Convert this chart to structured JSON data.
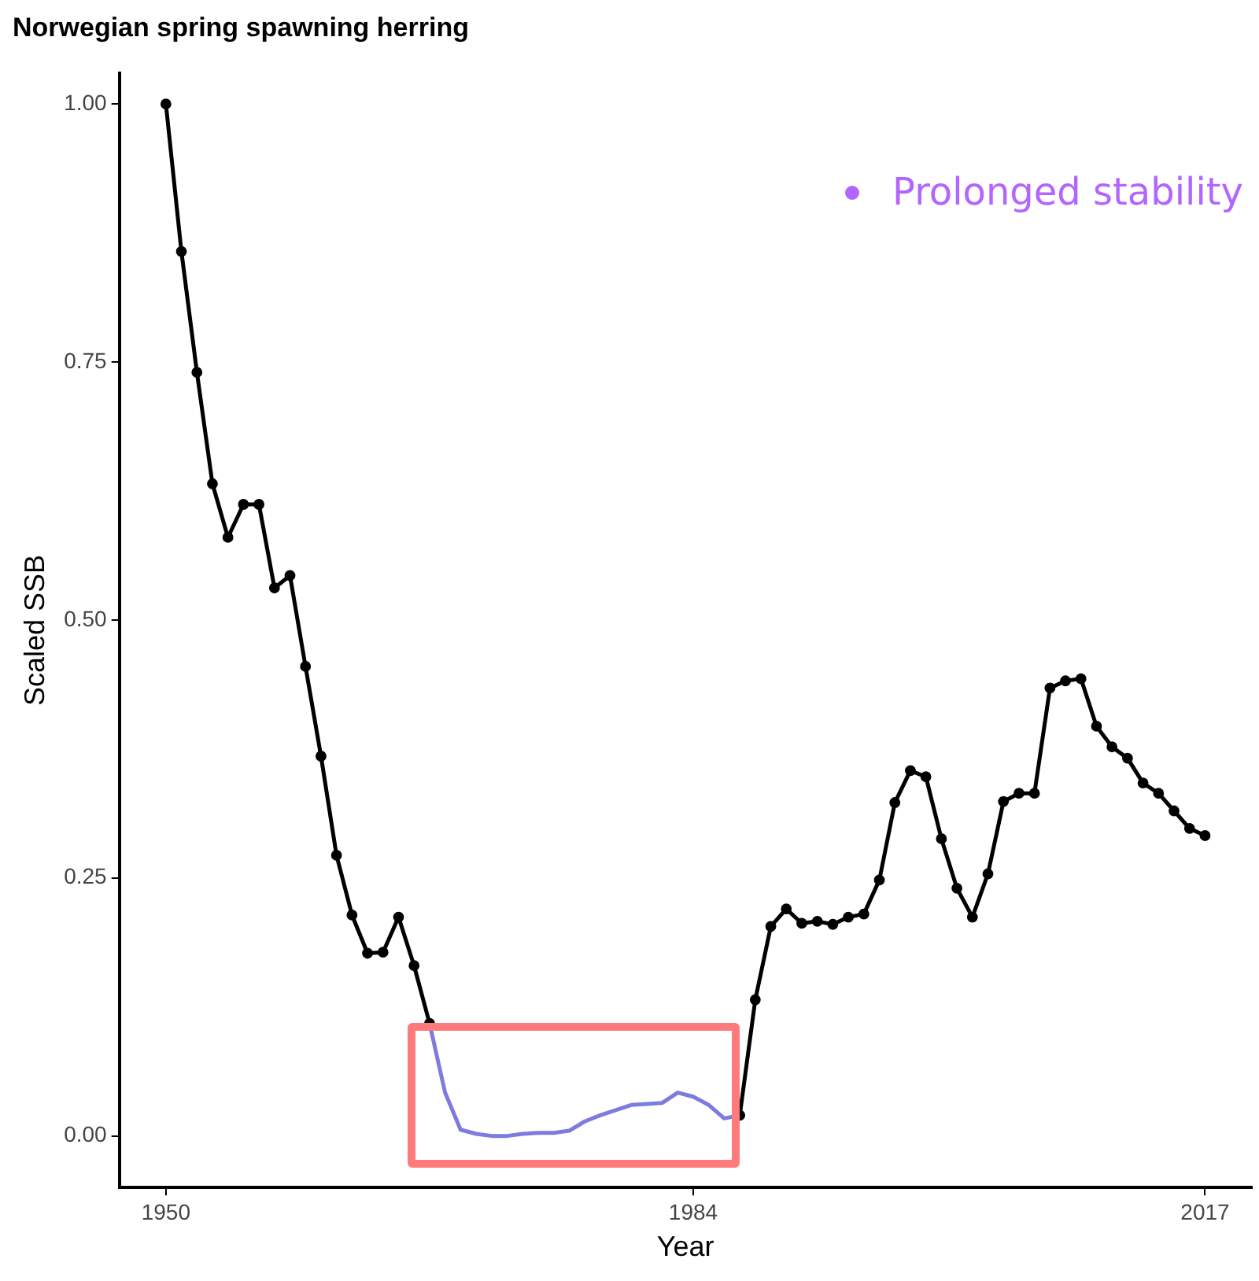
{
  "chart_data": {
    "type": "line",
    "title": "Norwegian spring spawning herring",
    "xlabel": "Year",
    "ylabel": "Scaled SSB",
    "annotations": [
      "Prolonged stability"
    ],
    "xlim": [
      1947,
      2020
    ],
    "xticks": [
      1950,
      1984,
      2017
    ],
    "ylim": [
      -0.05,
      1.03
    ],
    "yticks": [
      {
        "value": 0,
        "label": "0.00"
      },
      {
        "value": 0.25,
        "label": "0.25"
      },
      {
        "value": 0.5,
        "label": "0.50"
      },
      {
        "value": 0.75,
        "label": "0.75"
      },
      {
        "value": 1,
        "label": "1.00"
      }
    ],
    "grid": false,
    "legend": false,
    "marker": "circle",
    "line_style": "solid",
    "series": [
      {
        "color": "#000000",
        "x": [
          1950,
          1951,
          1952,
          1953,
          1954,
          1955,
          1956,
          1957,
          1958,
          1959,
          1960,
          1961,
          1962,
          1963,
          1964,
          1965,
          1966,
          1967
        ],
        "values": [
          1.0,
          0.857,
          0.74,
          0.632,
          0.58,
          0.612,
          0.612,
          0.531,
          0.543,
          0.455,
          0.368,
          0.272,
          0.214,
          0.177,
          0.178,
          0.212,
          0.165,
          0.109
        ]
      },
      {
        "color": "#7b7be0",
        "marker": "none",
        "x": [
          1967,
          1968,
          1969,
          1970,
          1971,
          1972,
          1973,
          1974,
          1975,
          1976,
          1977,
          1978,
          1979,
          1980,
          1981,
          1982,
          1983,
          1984,
          1985,
          1986,
          1987
        ],
        "values": [
          0.109,
          0.042,
          0.006,
          0.002,
          0.0,
          0.0,
          0.002,
          0.003,
          0.003,
          0.005,
          0.014,
          0.02,
          0.025,
          0.03,
          0.031,
          0.032,
          0.042,
          0.038,
          0.03,
          0.017,
          0.02
        ]
      },
      {
        "color": "#000000",
        "x": [
          1987,
          1988,
          1989,
          1990,
          1991,
          1992,
          1993,
          1994,
          1995,
          1996,
          1997,
          1998,
          1999,
          2000,
          2001,
          2002,
          2003,
          2004,
          2005,
          2006,
          2007,
          2008,
          2009,
          2010,
          2011,
          2012,
          2013,
          2014,
          2015,
          2016,
          2017
        ],
        "values": [
          0.02,
          0.132,
          0.203,
          0.22,
          0.206,
          0.208,
          0.205,
          0.212,
          0.215,
          0.248,
          0.323,
          0.354,
          0.348,
          0.288,
          0.24,
          0.212,
          0.254,
          0.324,
          0.332,
          0.332,
          0.434,
          0.441,
          0.443,
          0.397,
          0.377,
          0.366,
          0.342,
          0.332,
          0.315,
          0.298,
          0.291
        ]
      }
    ]
  }
}
